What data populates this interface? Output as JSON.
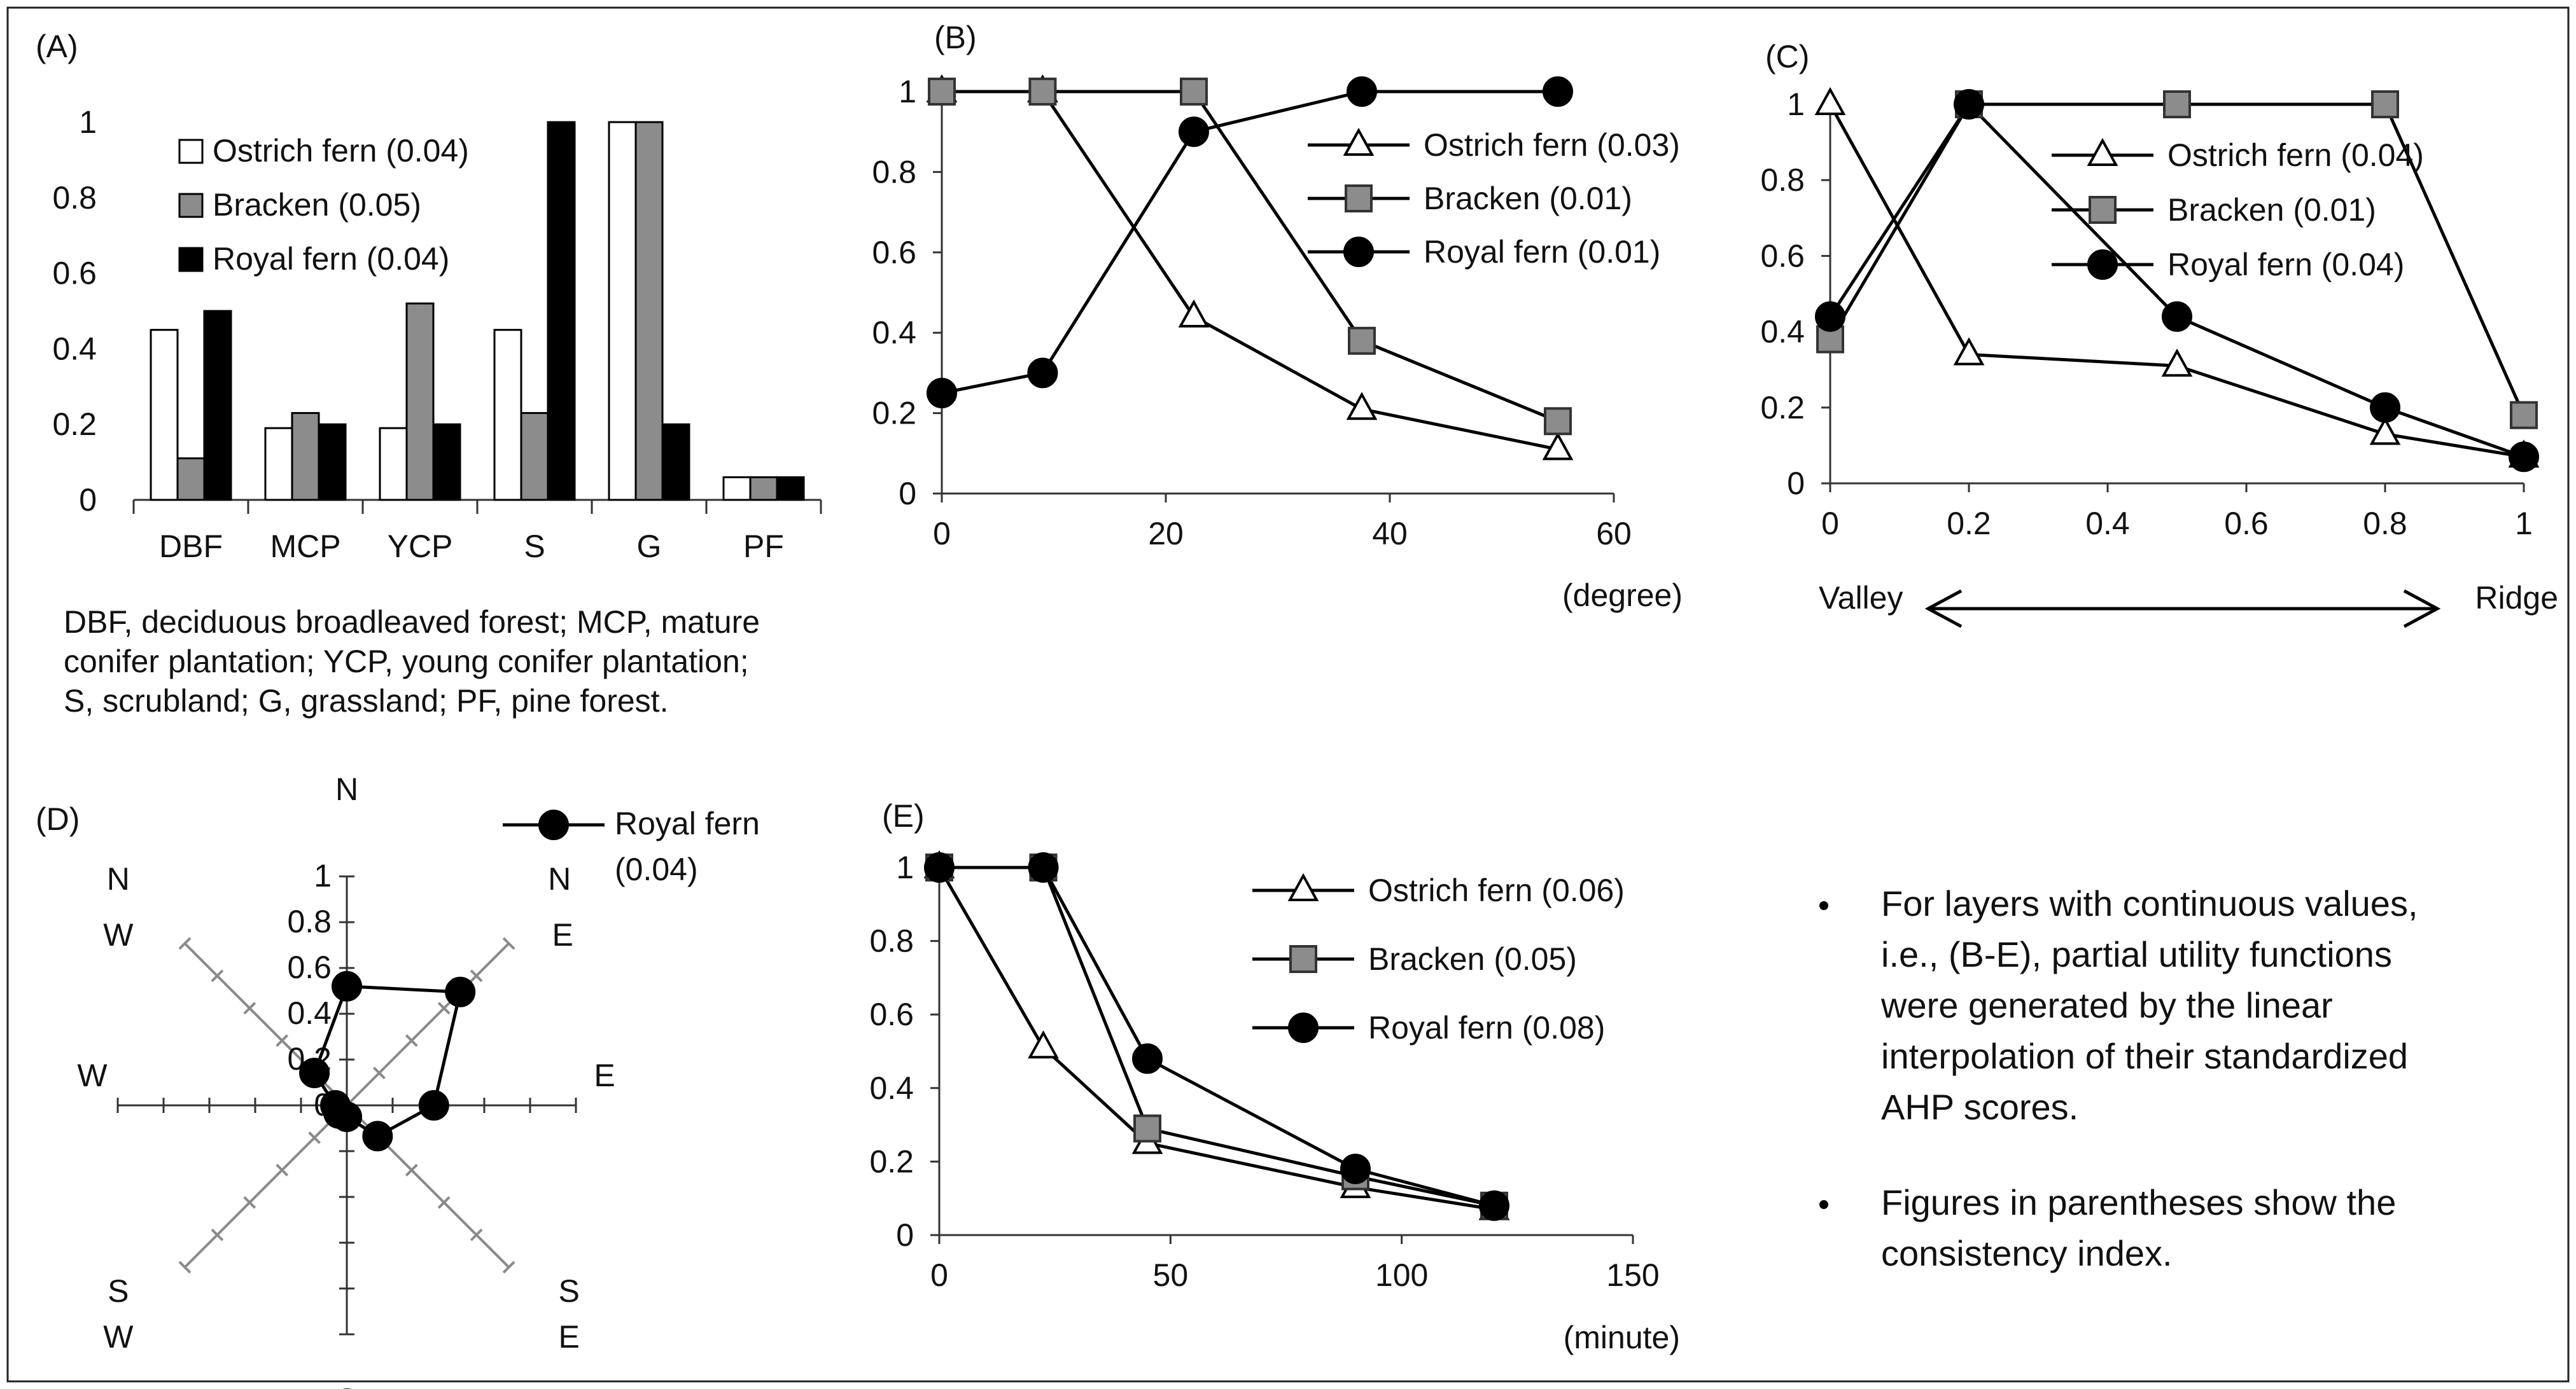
{
  "colors": {
    "ostrich": "#ffffff",
    "bracken": "#8c8c8c",
    "royal": "#000000"
  },
  "chart_data": [
    {
      "panel": "(A)",
      "type": "bar",
      "categories": [
        "DBF",
        "MCP",
        "YCP",
        "S",
        "G",
        "PF"
      ],
      "series": [
        {
          "name": "Ostrich fern (0.04)",
          "values": [
            0.45,
            0.19,
            0.19,
            0.45,
            1.0,
            0.06
          ]
        },
        {
          "name": "Bracken (0.05)",
          "values": [
            0.11,
            0.23,
            0.52,
            0.23,
            1.0,
            0.06
          ]
        },
        {
          "name": "Royal fern (0.04)",
          "values": [
            0.5,
            0.2,
            0.2,
            1.0,
            0.2,
            0.06
          ]
        }
      ],
      "ylim": [
        0,
        1
      ],
      "yticks": [
        "0",
        "0.2",
        "0.4",
        "0.6",
        "0.8",
        "1"
      ],
      "legend": "top-left",
      "note": "DBF, deciduous broadleaved forest; MCP, mature conifer plantation; YCP, young conifer plantation; S, scrubland; G, grassland; PF, pine forest."
    },
    {
      "panel": "(B)",
      "type": "line",
      "xlabel": "(degree)",
      "xlim": [
        0,
        60
      ],
      "ylim": [
        0,
        1
      ],
      "xticks": [
        "0",
        "20",
        "40",
        "60"
      ],
      "yticks": [
        "0",
        "0.2",
        "0.4",
        "0.6",
        "0.8",
        "1"
      ],
      "series": [
        {
          "name": "Ostrich fern (0.03)",
          "x": [
            0,
            9,
            22.5,
            37.5,
            55
          ],
          "y": [
            1,
            1,
            0.44,
            0.21,
            0.11
          ]
        },
        {
          "name": "Bracken (0.01)",
          "x": [
            0,
            9,
            22.5,
            37.5,
            55
          ],
          "y": [
            1,
            1,
            1,
            0.38,
            0.18
          ]
        },
        {
          "name": "Royal fern (0.01)",
          "x": [
            0,
            9,
            22.5,
            37.5,
            55
          ],
          "y": [
            0.25,
            0.3,
            0.9,
            1,
            1
          ]
        }
      ],
      "legend": "top-right"
    },
    {
      "panel": "(C)",
      "type": "line",
      "xlim": [
        0,
        1
      ],
      "ylim": [
        0,
        1
      ],
      "xticks": [
        "0",
        "0.2",
        "0.4",
        "0.6",
        "0.8",
        "1"
      ],
      "yticks": [
        "0",
        "0.2",
        "0.4",
        "0.6",
        "0.8",
        "1"
      ],
      "x_extremes": {
        "left": "Valley",
        "right": "Ridge"
      },
      "series": [
        {
          "name": "Ostrich fern (0.04)",
          "x": [
            0,
            0.2,
            0.5,
            0.8,
            1
          ],
          "y": [
            1,
            0.34,
            0.31,
            0.13,
            0.07
          ]
        },
        {
          "name": "Bracken (0.01)",
          "x": [
            0,
            0.2,
            0.5,
            0.8,
            1
          ],
          "y": [
            0.38,
            1,
            1,
            1,
            0.18
          ]
        },
        {
          "name": "Royal fern (0.04)",
          "x": [
            0,
            0.2,
            0.5,
            0.8,
            1
          ],
          "y": [
            0.44,
            1,
            0.44,
            0.2,
            0.07
          ]
        }
      ],
      "legend": "top-right"
    },
    {
      "panel": "(D)",
      "type": "radar",
      "directions": [
        "N",
        "NE",
        "E",
        "SE",
        "S",
        "SW",
        "W",
        "NW"
      ],
      "direction_labels": {
        "N": "N",
        "NE": [
          "N",
          "E"
        ],
        "E": "E",
        "SE": [
          "S",
          "E"
        ],
        "S": "S",
        "SW": [
          "S",
          "W"
        ],
        "W": "W",
        "NW": [
          "N",
          "W"
        ]
      },
      "rticks": [
        "0",
        "0.2",
        "0.4",
        "0.6",
        "0.8",
        "1"
      ],
      "rlim": [
        0,
        1
      ],
      "series": [
        {
          "name": "Royal fern",
          "consistency": "(0.04)",
          "values": [
            0.52,
            0.7,
            0.38,
            0.19,
            0.05,
            0.05,
            0.05,
            0.2
          ]
        }
      ],
      "legend": "top-right"
    },
    {
      "panel": "(E)",
      "type": "line",
      "xlabel": "(minute)",
      "xlim": [
        0,
        150
      ],
      "ylim": [
        0,
        1
      ],
      "xticks": [
        "0",
        "50",
        "100",
        "150"
      ],
      "yticks": [
        "0",
        "0.2",
        "0.4",
        "0.6",
        "0.8",
        "1"
      ],
      "series": [
        {
          "name": "Ostrich fern (0.06)",
          "x": [
            0,
            22.5,
            45,
            90,
            120
          ],
          "y": [
            1,
            0.51,
            0.25,
            0.13,
            0.07
          ]
        },
        {
          "name": "Bracken (0.05)",
          "x": [
            0,
            22.5,
            45,
            90,
            120
          ],
          "y": [
            1,
            1,
            0.29,
            0.16,
            0.08
          ]
        },
        {
          "name": "Royal fern (0.08)",
          "x": [
            0,
            22.5,
            45,
            90,
            120
          ],
          "y": [
            1,
            1,
            0.48,
            0.18,
            0.08
          ]
        }
      ],
      "legend": "top-right"
    }
  ],
  "notes": [
    " For layers with continuous values, i.e., (B-E), partial utility functions were generated by the linear interpolation of their standardized AHP scores.",
    "Figures in parentheses show the consistency index."
  ]
}
